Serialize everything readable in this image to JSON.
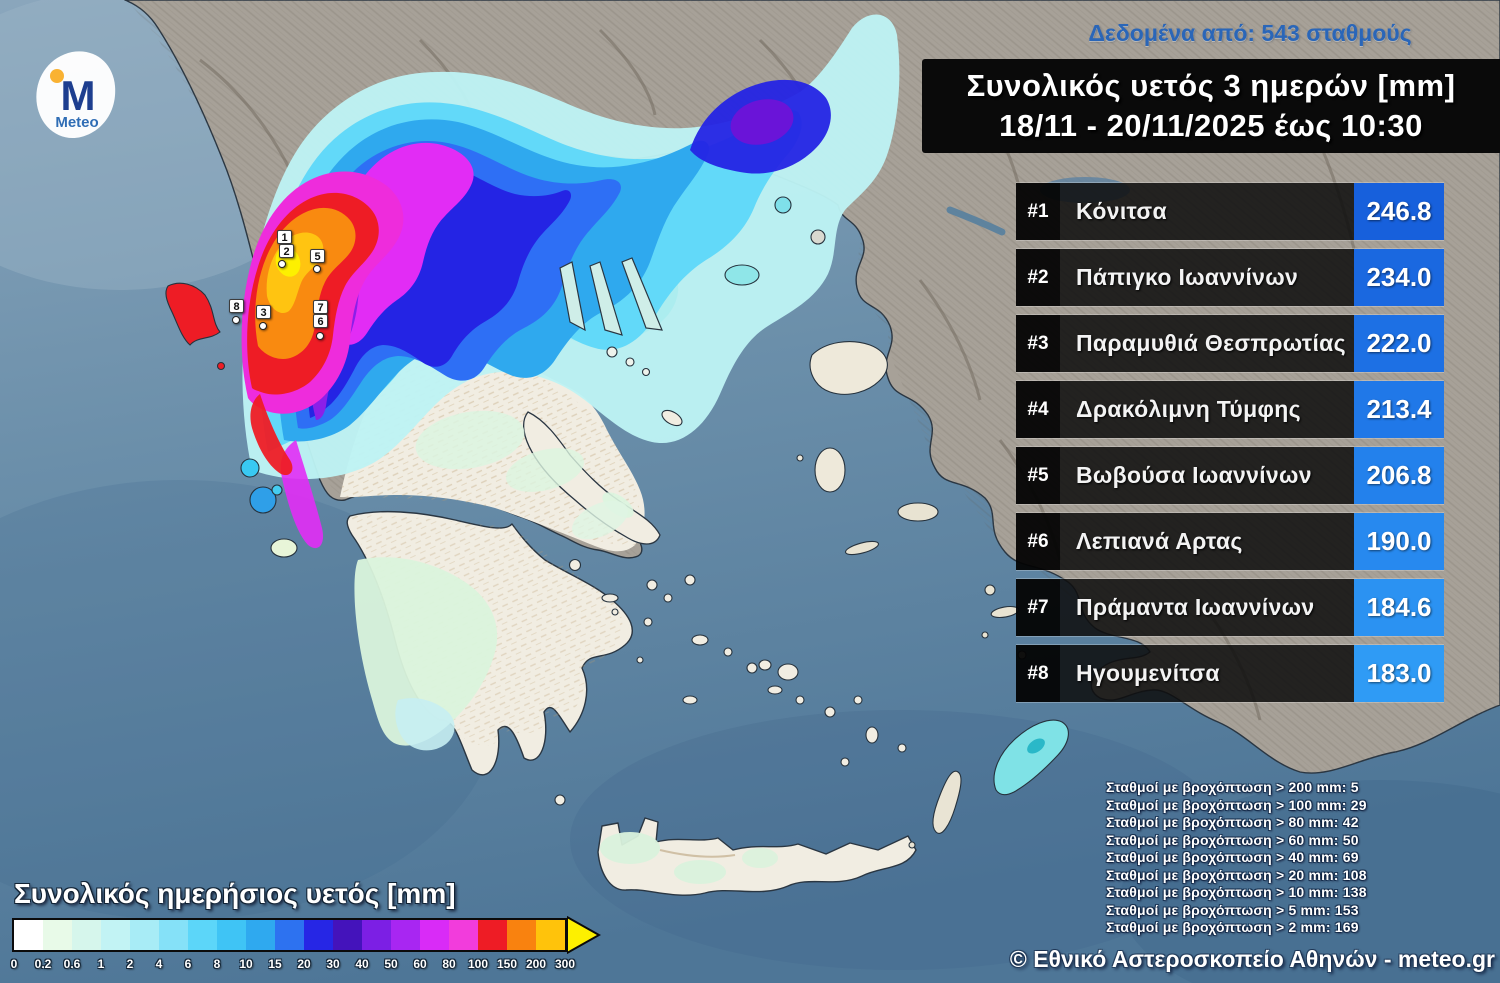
{
  "meta": {
    "title_line1": "Συνολικός υετός 3 ημερών [mm]",
    "title_line2": "18/11 - 20/11/2025 έως 10:30",
    "data_source": "Δεδομένα από: 543 σταθμούς",
    "copyright": "© Εθνικό Αστεροσκοπείο Αθηνών - meteo.gr"
  },
  "logo": {
    "letter": "M",
    "name": "Meteo",
    "dot_color": "#f9b233",
    "letter_color": "#1d3e8f",
    "text_color": "#2f6db5"
  },
  "rankings": [
    {
      "rank": "#1",
      "name": "Κόνιτσα",
      "value": "246.8",
      "value_color": "#1760DC"
    },
    {
      "rank": "#2",
      "name": "Πάπιγκο Ιωαννίνων",
      "value": "234.0",
      "value_color": "#1A68E0"
    },
    {
      "rank": "#3",
      "name": "Παραμυθιά Θεσπρωτίας",
      "value": "222.0",
      "value_color": "#1D70E4"
    },
    {
      "rank": "#4",
      "name": "Δρακόλιμνη Τύμφης",
      "value": "213.4",
      "value_color": "#2078E8"
    },
    {
      "rank": "#5",
      "name": "Βωβούσα Ιωαννίνων",
      "value": "206.8",
      "value_color": "#2381EC"
    },
    {
      "rank": "#6",
      "name": "Λεπιανά Αρτας",
      "value": "190.0",
      "value_color": "#2789EF"
    },
    {
      "rank": "#7",
      "name": "Πράμαντα Ιωαννίνων",
      "value": "184.6",
      "value_color": "#2B92F2"
    },
    {
      "rank": "#8",
      "name": "Ηγουμενίτσα",
      "value": "183.0",
      "value_color": "#2F9BF5"
    }
  ],
  "legend": {
    "title": "Συνολικός ημερήσιος υετός [mm]",
    "ticks": [
      "0",
      "0.2",
      "0.6",
      "1",
      "2",
      "4",
      "6",
      "8",
      "10",
      "15",
      "20",
      "30",
      "40",
      "50",
      "60",
      "80",
      "100",
      "150",
      "200",
      "300"
    ],
    "segment_colors": [
      "#ffffff",
      "#e8fae8",
      "#d6f6ec",
      "#c2f3f4",
      "#a8ecf6",
      "#85e1f8",
      "#5cd6f9",
      "#3fc4f5",
      "#2fa9ef",
      "#2d72f0",
      "#2626e5",
      "#4413bb",
      "#7c1fe4",
      "#a826f2",
      "#d92bf7",
      "#f23cdc",
      "#ee1c25",
      "#f9820f",
      "#ffc30b"
    ],
    "arrow_color": "#fdf000"
  },
  "stats": {
    "lines": [
      "Σταθμοί με βροχόπτωση > 200 mm: 5",
      "Σταθμοί με βροχόπτωση > 100 mm: 29",
      "Σταθμοί με βροχόπτωση > 80 mm: 42",
      "Σταθμοί με βροχόπτωση > 60 mm: 50",
      "Σταθμοί με βροχόπτωση > 40 mm: 69",
      "Σταθμοί με βροχόπτωση > 20 mm: 108",
      "Σταθμοί με βροχόπτωση > 10 mm: 138",
      "Σταθμοί με βροχόπτωση > 5 mm: 153",
      "Σταθμοί με βροχόπτωση > 2 mm: 169"
    ]
  },
  "map": {
    "sea_color": "#6b8faa",
    "terrain_color": "#a7a198",
    "plain_color": "#f1ede2",
    "markers": [
      {
        "label": "1"
      },
      {
        "label": "2"
      },
      {
        "label": "5"
      },
      {
        "label": "8"
      },
      {
        "label": "3"
      },
      {
        "label": "7"
      },
      {
        "label": "6"
      }
    ]
  }
}
